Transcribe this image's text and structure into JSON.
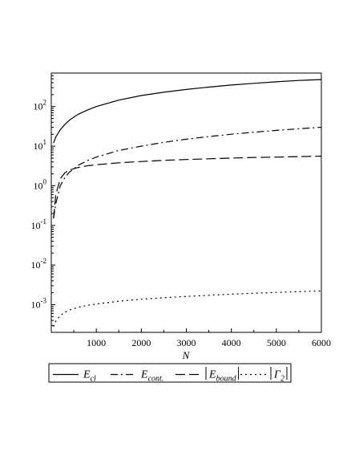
{
  "chart_data": {
    "type": "line",
    "title": "",
    "xlabel": "N",
    "ylabel": "",
    "xlim": [
      0,
      6000
    ],
    "ylim": [
      0.0002,
      700
    ],
    "yscale": "log",
    "grid": false,
    "legend_position": "bottom",
    "x_ticks": [
      1000,
      2000,
      3000,
      4000,
      5000,
      6000
    ],
    "x_tick_labels": [
      "1000",
      "2000",
      "3000",
      "4000",
      "5000",
      "6000"
    ],
    "y_ticks": [
      0.001,
      0.01,
      0.1,
      1,
      10,
      100
    ],
    "y_tick_base": "10",
    "y_tick_exponents": [
      "-3",
      "-2",
      "-1",
      "0",
      "1",
      "2"
    ],
    "series": [
      {
        "name": "E_cl",
        "style": "solid",
        "x": [
          50,
          100,
          200,
          300,
          400,
          600,
          800,
          1000,
          1500,
          2000,
          2500,
          3000,
          3500,
          4000,
          4500,
          5000,
          5500,
          6000
        ],
        "values": [
          12,
          17,
          26,
          35,
          45,
          64,
          81,
          100,
          145,
          190,
          230,
          270,
          310,
          350,
          385,
          420,
          455,
          480
        ]
      },
      {
        "name": "E_cont.",
        "style": "dashdot",
        "x": [
          50,
          100,
          200,
          300,
          400,
          600,
          800,
          1000,
          1500,
          2000,
          2500,
          3000,
          3500,
          4000,
          4500,
          5000,
          5500,
          6000
        ],
        "values": [
          0.15,
          0.35,
          1.0,
          1.6,
          2.2,
          3.3,
          4.3,
          5.3,
          7.8,
          10,
          12.5,
          15,
          17.5,
          20,
          22.5,
          25,
          27.5,
          30
        ]
      },
      {
        "name": "|E_bound|",
        "style": "dashed",
        "x": [
          50,
          100,
          200,
          300,
          400,
          600,
          800,
          1000,
          1500,
          2000,
          2500,
          3000,
          3500,
          4000,
          4500,
          5000,
          5500,
          6000
        ],
        "values": [
          0.15,
          0.6,
          1.5,
          2.1,
          2.5,
          2.9,
          3.2,
          3.4,
          3.8,
          4.1,
          4.4,
          4.6,
          4.8,
          5.0,
          5.2,
          5.3,
          5.45,
          5.6
        ]
      },
      {
        "name": "|Γ_2|",
        "style": "dotted",
        "x": [
          50,
          100,
          200,
          300,
          400,
          600,
          800,
          1000,
          1500,
          2000,
          2500,
          3000,
          3500,
          4000,
          4500,
          5000,
          5500,
          6000
        ],
        "values": [
          0.00028,
          0.00038,
          0.00053,
          0.00064,
          0.00073,
          0.00086,
          0.00096,
          0.00104,
          0.00122,
          0.00137,
          0.0015,
          0.00162,
          0.00173,
          0.00184,
          0.00194,
          0.00204,
          0.00213,
          0.00222
        ]
      }
    ]
  },
  "legend": {
    "items": [
      {
        "main": "E",
        "sub": "cl",
        "style": "solid"
      },
      {
        "main": "E",
        "sub": "cont.",
        "style": "dashdot"
      },
      {
        "main": "E",
        "sub": "bound",
        "style": "dashed",
        "abs": true
      },
      {
        "main": "Γ",
        "sub": "2",
        "style": "dotted",
        "abs": true
      }
    ]
  }
}
